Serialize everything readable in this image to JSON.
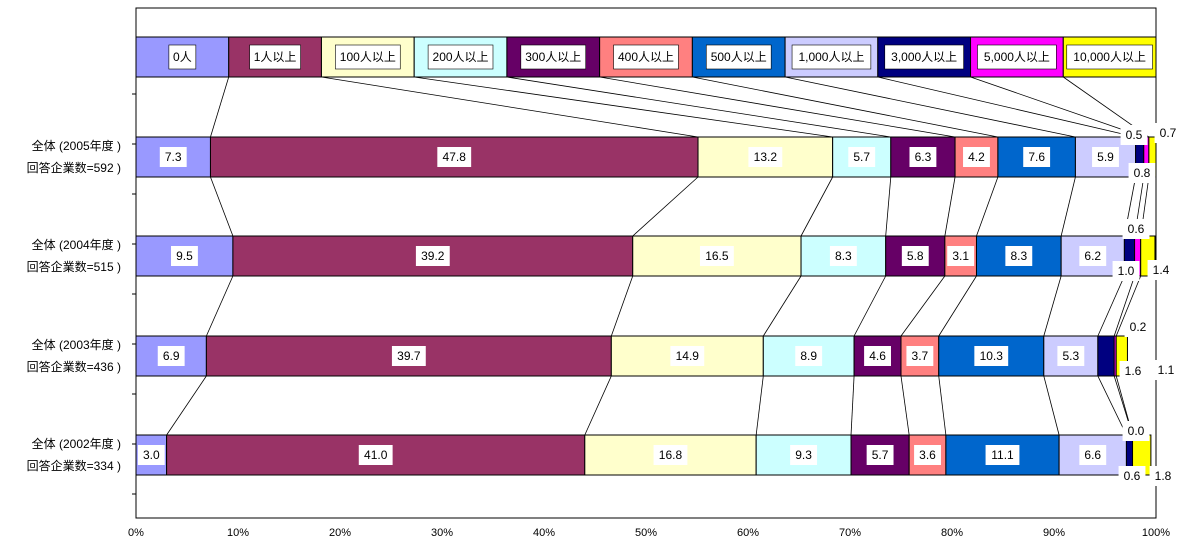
{
  "chart_data": {
    "type": "bar",
    "orientation": "horizontal",
    "stacked": true,
    "xlim": [
      0,
      100
    ],
    "x_ticks": [
      "0%",
      "10%",
      "20%",
      "30%",
      "40%",
      "50%",
      "60%",
      "70%",
      "80%",
      "90%",
      "100%"
    ],
    "legend_placement": "top",
    "categories": [
      {
        "line1": "全体 (2005年度 )",
        "line2": "回答企業数=592 )"
      },
      {
        "line1": "全体 (2004年度 )",
        "line2": "回答企業数=515 )"
      },
      {
        "line1": "全体 (2003年度 )",
        "line2": "回答企業数=436 )"
      },
      {
        "line1": "全体 (2002年度 )",
        "line2": "回答企業数=334 )"
      }
    ],
    "series": [
      {
        "name": "0人",
        "color": "#9999ff",
        "values": [
          7.3,
          9.5,
          6.9,
          3.0
        ],
        "labels": [
          "7.3",
          "9.5",
          "6.9",
          "3.0"
        ]
      },
      {
        "name": "1人以上",
        "color": "#993366",
        "values": [
          47.8,
          39.2,
          39.7,
          41.0
        ],
        "labels": [
          "47.8",
          "39.2",
          "39.7",
          "41.0"
        ]
      },
      {
        "name": "100人以上",
        "color": "#ffffcc",
        "values": [
          13.2,
          16.5,
          14.9,
          16.8
        ],
        "labels": [
          "13.2",
          "16.5",
          "14.9",
          "16.8"
        ]
      },
      {
        "name": "200人以上",
        "color": "#ccffff",
        "values": [
          5.7,
          8.3,
          8.9,
          9.3
        ],
        "labels": [
          "5.7",
          "8.3",
          "8.9",
          "9.3"
        ]
      },
      {
        "name": "300人以上",
        "color": "#660066",
        "values": [
          6.3,
          5.8,
          4.6,
          5.7
        ],
        "labels": [
          "6.3",
          "5.8",
          "4.6",
          "5.7"
        ]
      },
      {
        "name": "400人以上",
        "color": "#ff8080",
        "values": [
          4.2,
          3.1,
          3.7,
          3.6
        ],
        "labels": [
          "4.2",
          "3.1",
          "3.7",
          "3.6"
        ]
      },
      {
        "name": "500人以上",
        "color": "#0066cc",
        "values": [
          7.6,
          8.3,
          10.3,
          11.1
        ],
        "labels": [
          "7.6",
          "8.3",
          "10.3",
          "11.1"
        ]
      },
      {
        "name": "1,000人以上",
        "color": "#ccccff",
        "values": [
          5.9,
          6.2,
          5.3,
          6.6
        ],
        "labels": [
          "5.9",
          "6.2",
          "5.3",
          "6.6"
        ]
      },
      {
        "name": "3,000人以上",
        "color": "#000080",
        "values": [
          0.8,
          1.0,
          1.6,
          0.6
        ],
        "labels": [
          "0.8",
          "1.0",
          "1.6",
          "0.6"
        ]
      },
      {
        "name": "5,000人以上",
        "color": "#ff00ff",
        "values": [
          0.5,
          0.6,
          0.2,
          0.0
        ],
        "labels": [
          "0.5",
          "0.6",
          "0.2",
          "0.0"
        ]
      },
      {
        "name": "10,000人以上",
        "color": "#ffff00",
        "values": [
          0.7,
          1.4,
          1.1,
          1.8
        ],
        "labels": [
          "0.7",
          "1.4",
          "1.1",
          "1.8"
        ]
      }
    ]
  }
}
